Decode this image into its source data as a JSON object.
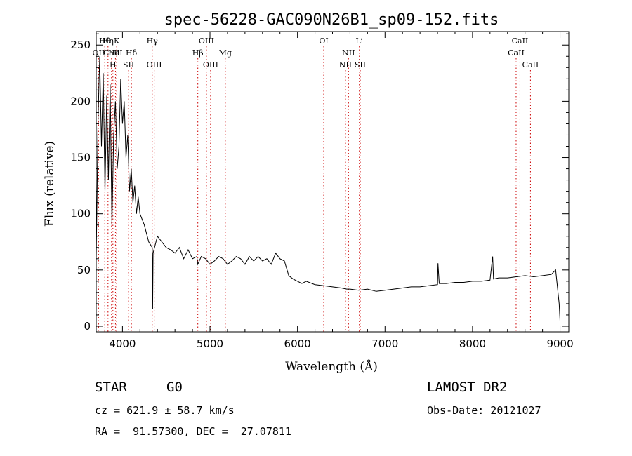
{
  "chart_data": {
    "type": "line",
    "title": "spec-56228-GAC090N26B1_sp09-152.fits",
    "xlabel": "Wavelength (Å)",
    "ylabel": "Flux (relative)",
    "xlim": [
      3700,
      9100
    ],
    "ylim": [
      -5,
      262
    ],
    "xticks": [
      4000,
      5000,
      6000,
      7000,
      8000,
      9000
    ],
    "yticks": [
      0,
      50,
      100,
      150,
      200,
      250
    ],
    "line_color": "#000000",
    "marker_color": "#cc0000",
    "series": [
      {
        "x": [
          3700,
          3720,
          3740,
          3760,
          3780,
          3800,
          3820,
          3840,
          3860,
          3880,
          3900,
          3920,
          3940,
          3960,
          3980,
          4000,
          4020,
          4040,
          4060,
          4080,
          4100,
          4120,
          4140,
          4160,
          4180,
          4200,
          4250,
          4300,
          4340,
          4345,
          4350,
          4400,
          4450,
          4500,
          4550,
          4600,
          4650,
          4700,
          4750,
          4800,
          4850,
          4861,
          4900,
          4950,
          5000,
          5050,
          5100,
          5150,
          5200,
          5250,
          5300,
          5350,
          5400,
          5450,
          5500,
          5550,
          5600,
          5650,
          5700,
          5750,
          5800,
          5850,
          5900,
          5950,
          6000,
          6050,
          6100,
          6200,
          6300,
          6400,
          6500,
          6563,
          6600,
          6700,
          6800,
          6900,
          7000,
          7100,
          7200,
          7300,
          7400,
          7500,
          7600,
          7605,
          7620,
          7700,
          7800,
          7900,
          8000,
          8100,
          8200,
          8230,
          8240,
          8300,
          8400,
          8500,
          8600,
          8700,
          8800,
          8900,
          8950,
          8990,
          9000
        ],
        "values": [
          60,
          180,
          240,
          160,
          225,
          120,
          205,
          130,
          215,
          90,
          170,
          200,
          140,
          160,
          220,
          180,
          200,
          150,
          170,
          120,
          140,
          110,
          125,
          100,
          115,
          100,
          90,
          75,
          70,
          15,
          65,
          80,
          75,
          70,
          68,
          65,
          70,
          60,
          68,
          60,
          62,
          55,
          62,
          60,
          55,
          58,
          62,
          60,
          55,
          58,
          62,
          60,
          55,
          62,
          58,
          62,
          58,
          60,
          55,
          65,
          60,
          58,
          45,
          42,
          40,
          38,
          40,
          37,
          36,
          35,
          34,
          33,
          33,
          32,
          33,
          31,
          32,
          33,
          34,
          35,
          35,
          36,
          37,
          56,
          38,
          38,
          39,
          39,
          40,
          40,
          41,
          62,
          42,
          43,
          43,
          44,
          45,
          44,
          45,
          46,
          50,
          20,
          5
        ]
      }
    ],
    "line_markers": [
      {
        "label": "OII",
        "x": 3727,
        "row": 1
      },
      {
        "label": "Hθ",
        "x": 3798,
        "row": 0
      },
      {
        "label": "Hη",
        "x": 3835,
        "row": 0
      },
      {
        "label": "CaII",
        "x": 3875,
        "row": 1
      },
      {
        "label": "H",
        "x": 3891,
        "row": 2
      },
      {
        "label": "HeI",
        "x": 3920,
        "row": 1
      },
      {
        "label": "K",
        "x": 3934,
        "row": 0
      },
      {
        "label": "SII",
        "x": 4070,
        "row": 2
      },
      {
        "label": "Hδ",
        "x": 4102,
        "row": 1
      },
      {
        "label": "Hγ",
        "x": 4340,
        "row": 0
      },
      {
        "label": "OIII",
        "x": 4363,
        "row": 2
      },
      {
        "label": "Hβ",
        "x": 4861,
        "row": 1
      },
      {
        "label": "OIII",
        "x": 4959,
        "row": 0
      },
      {
        "label": "OIII",
        "x": 5007,
        "row": 2
      },
      {
        "label": "Mg",
        "x": 5175,
        "row": 1
      },
      {
        "label": "OI",
        "x": 6300,
        "row": 0
      },
      {
        "label": "NII",
        "x": 6548,
        "row": 2
      },
      {
        "label": "NII",
        "x": 6583,
        "row": 1
      },
      {
        "label": "Li",
        "x": 6707,
        "row": 0
      },
      {
        "label": "SII",
        "x": 6717,
        "row": 2
      },
      {
        "label": "CaII",
        "x": 8498,
        "row": 1
      },
      {
        "label": "CaII",
        "x": 8542,
        "row": 0
      },
      {
        "label": "CaII",
        "x": 8662,
        "row": 2
      }
    ]
  },
  "info": {
    "class": "STAR",
    "subclass": "G0",
    "survey": "LAMOST DR2",
    "cz": "cz = 621.9 ± 58.7 km/s",
    "obsdate": "Obs-Date: 20121027",
    "radec": "RA =  91.57300, DEC =  27.07811"
  }
}
